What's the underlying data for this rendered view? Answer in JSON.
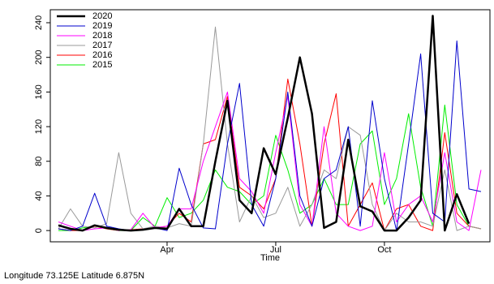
{
  "chart_data": {
    "type": "line",
    "x_label": "Time",
    "note": "Longitude 73.125E Latitude 6.875N",
    "categories": [
      null,
      null,
      null,
      null,
      null,
      null,
      null,
      null,
      null,
      "Apr",
      null,
      null,
      null,
      null,
      null,
      null,
      null,
      null,
      "Jul",
      null,
      null,
      null,
      null,
      null,
      null,
      null,
      null,
      "Oct",
      null,
      null,
      null,
      null,
      null,
      null,
      null,
      null
    ],
    "ylim": [
      -13,
      255
    ],
    "yticks": [
      0,
      40,
      80,
      120,
      160,
      200,
      240
    ],
    "legend": "top-left",
    "series": [
      {
        "name": "2020",
        "color": "#000000",
        "width": 2.5,
        "values": [
          6,
          2,
          0,
          6,
          3,
          1,
          0,
          1,
          3,
          2,
          25,
          5,
          5,
          80,
          150,
          35,
          20,
          95,
          65,
          130,
          200,
          135,
          3,
          10,
          105,
          28,
          22,
          0,
          0,
          15,
          35,
          248,
          0,
          42,
          8,
          null
        ]
      },
      {
        "name": "2019",
        "color": "#0000cc",
        "width": 1,
        "values": [
          2,
          0,
          5,
          43,
          5,
          2,
          0,
          1,
          3,
          0,
          72,
          30,
          3,
          2,
          100,
          170,
          30,
          5,
          60,
          160,
          40,
          5,
          60,
          70,
          120,
          5,
          150,
          60,
          0,
          100,
          204,
          20,
          10,
          219,
          48,
          45
        ]
      },
      {
        "name": "2018",
        "color": "#ff00ff",
        "width": 1,
        "values": [
          10,
          5,
          0,
          2,
          3,
          0,
          1,
          20,
          3,
          5,
          25,
          25,
          80,
          120,
          160,
          60,
          45,
          20,
          90,
          155,
          30,
          5,
          120,
          20,
          5,
          0,
          5,
          90,
          10,
          30,
          40,
          10,
          90,
          10,
          0,
          70
        ]
      },
      {
        "name": "2017",
        "color": "#999999",
        "width": 1,
        "values": [
          2,
          25,
          5,
          3,
          8,
          90,
          20,
          2,
          5,
          3,
          8,
          5,
          100,
          235,
          100,
          10,
          40,
          15,
          20,
          50,
          5,
          30,
          70,
          60,
          120,
          110,
          30,
          0,
          20,
          10,
          10,
          5,
          70,
          0,
          5,
          2
        ]
      },
      {
        "name": "2016",
        "color": "#ff0000",
        "width": 1,
        "values": [
          2,
          0,
          0,
          5,
          2,
          0,
          1,
          2,
          3,
          5,
          20,
          10,
          100,
          105,
          155,
          50,
          40,
          25,
          60,
          175,
          100,
          5,
          100,
          158,
          5,
          30,
          55,
          0,
          25,
          30,
          5,
          0,
          113,
          20,
          5,
          2
        ]
      },
      {
        "name": "2015",
        "color": "#00ee00",
        "width": 1,
        "values": [
          0,
          0,
          3,
          5,
          2,
          0,
          0,
          15,
          5,
          38,
          15,
          20,
          35,
          70,
          50,
          45,
          30,
          40,
          110,
          70,
          20,
          30,
          60,
          30,
          30,
          100,
          115,
          30,
          60,
          135,
          50,
          5,
          145,
          30,
          5,
          2
        ]
      }
    ]
  }
}
